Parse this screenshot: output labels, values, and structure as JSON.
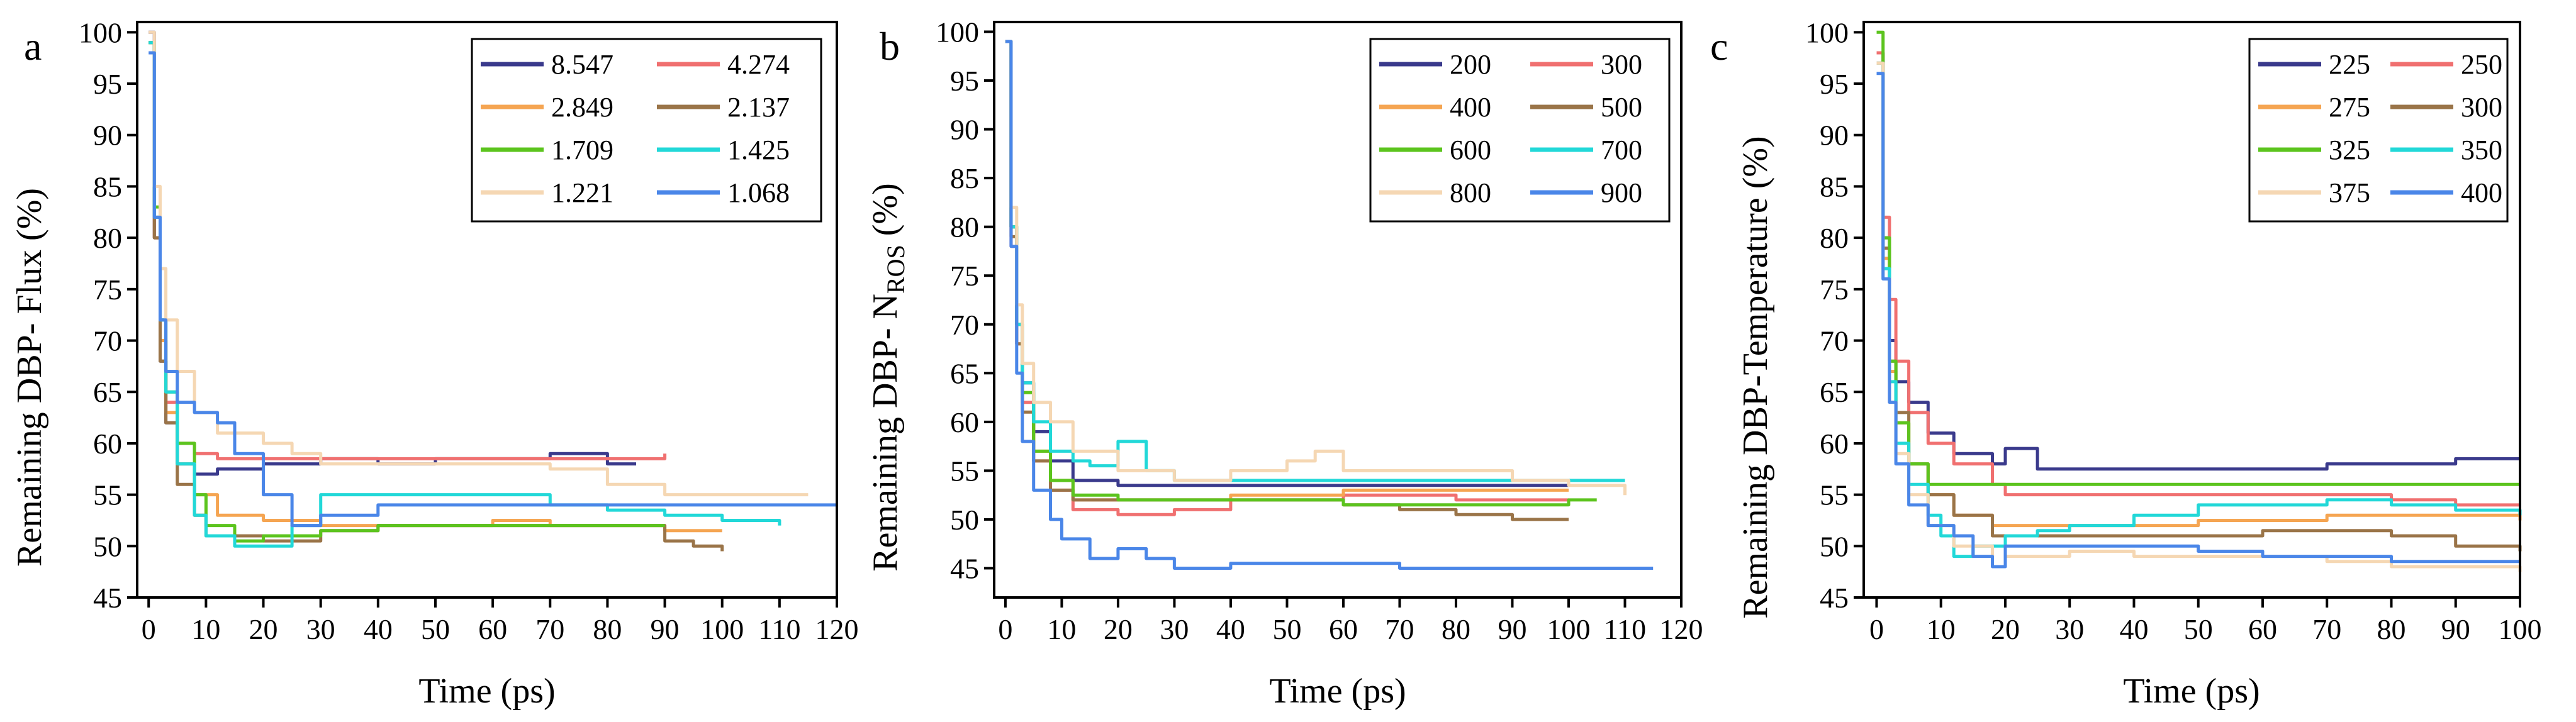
{
  "colors": [
    "#3a3a8c",
    "#f07070",
    "#f5a552",
    "#9a7448",
    "#5cc41e",
    "#22d8d8",
    "#f5d7b3",
    "#4a86e8"
  ],
  "chart_data": [
    {
      "type": "line",
      "panel_label": "a",
      "xlabel": "Time (ps)",
      "ylabel": "Remaining DBP- Flux (%)",
      "xlim": [
        -2,
        120
      ],
      "ylim": [
        45,
        101
      ],
      "xticks": [
        0,
        10,
        20,
        30,
        40,
        50,
        60,
        70,
        80,
        90,
        100,
        110,
        120
      ],
      "xtick_labels": [
        "0",
        "10",
        "20",
        "30",
        "40",
        "50",
        "60",
        "70",
        "80",
        "90",
        "100",
        "110",
        "120"
      ],
      "yticks": [
        45,
        50,
        55,
        60,
        65,
        70,
        75,
        80,
        85,
        90,
        95,
        100
      ],
      "ytick_labels": [
        "45",
        "50",
        "55",
        "60",
        "65",
        "70",
        "75",
        "80",
        "85",
        "90",
        "95",
        "100"
      ],
      "legend_position": "top-right",
      "series": [
        {
          "name": "8.547",
          "x": [
            0,
            1,
            2,
            3,
            5,
            8,
            12,
            20,
            30,
            40,
            50,
            60,
            70,
            80,
            85
          ],
          "y": [
            100,
            80,
            68,
            62,
            58,
            57,
            57.5,
            58,
            58.5,
            58,
            58.5,
            58.5,
            59,
            58,
            58
          ]
        },
        {
          "name": "4.274",
          "x": [
            0,
            1,
            2,
            3,
            5,
            8,
            12,
            20,
            30,
            40,
            50,
            60,
            70,
            80,
            90
          ],
          "y": [
            99,
            80,
            70,
            64,
            60,
            59,
            58.5,
            58.5,
            58.5,
            58.5,
            58.5,
            58.5,
            58.5,
            58.5,
            59
          ]
        },
        {
          "name": "2.849",
          "x": [
            0,
            1,
            2,
            3,
            5,
            8,
            12,
            20,
            30,
            40,
            50,
            60,
            70,
            80,
            90,
            100
          ],
          "y": [
            99,
            82,
            70,
            63,
            58,
            55,
            53,
            52.5,
            52,
            52,
            52,
            52.5,
            52,
            52,
            51.5,
            51.5
          ]
        },
        {
          "name": "2.137",
          "x": [
            0,
            1,
            2,
            3,
            5,
            8,
            10,
            15,
            20,
            30,
            40,
            50,
            60,
            70,
            80,
            90,
            95,
            100
          ],
          "y": [
            99,
            80,
            68,
            62,
            56,
            53,
            51,
            51,
            50.5,
            51.5,
            52,
            52,
            52,
            52,
            52,
            50.5,
            50,
            49.5
          ]
        },
        {
          "name": "1.709",
          "x": [
            0,
            1,
            2,
            3,
            5,
            8,
            10,
            15,
            20,
            30,
            40,
            50,
            60,
            70,
            80,
            90
          ],
          "y": [
            99,
            83,
            72,
            65,
            60,
            55,
            52,
            50.5,
            51,
            51.5,
            52,
            52,
            52,
            52,
            52,
            52
          ]
        },
        {
          "name": "1.425",
          "x": [
            0,
            1,
            2,
            3,
            5,
            8,
            10,
            15,
            20,
            25,
            30,
            40,
            50,
            60,
            70,
            80,
            90,
            100,
            110
          ],
          "y": [
            99,
            82,
            72,
            65,
            58,
            53,
            51,
            50,
            50,
            52,
            55,
            55,
            55,
            55,
            54,
            53.5,
            53,
            52.5,
            52
          ]
        },
        {
          "name": "1.221",
          "x": [
            0,
            1,
            2,
            3,
            5,
            8,
            12,
            20,
            25,
            30,
            40,
            50,
            60,
            70,
            80,
            90,
            100,
            110,
            115
          ],
          "y": [
            100,
            85,
            77,
            72,
            67,
            63,
            61,
            60,
            59,
            58,
            58,
            58,
            58,
            57.5,
            56,
            55,
            55,
            55,
            55
          ]
        },
        {
          "name": "1.068",
          "x": [
            0,
            1,
            2,
            3,
            5,
            8,
            12,
            15,
            20,
            25,
            30,
            40,
            50,
            60,
            70,
            80,
            90,
            100,
            110,
            120
          ],
          "y": [
            98,
            82,
            72,
            67,
            64,
            63,
            62,
            59,
            55,
            52,
            53,
            54,
            54,
            54,
            54,
            54,
            54,
            54,
            54,
            54
          ]
        }
      ]
    },
    {
      "type": "line",
      "panel_label": "b",
      "xlabel": "Time (ps)",
      "ylabel": "Remaining DBP- N",
      "ylabel_sub": "ROS",
      "ylabel_suffix": " (%)",
      "xlim": [
        -2,
        120
      ],
      "ylim": [
        42,
        101
      ],
      "xticks": [
        0,
        10,
        20,
        30,
        40,
        50,
        60,
        70,
        80,
        90,
        100,
        110,
        120
      ],
      "xtick_labels": [
        "0",
        "10",
        "20",
        "30",
        "40",
        "50",
        "60",
        "70",
        "80",
        "90",
        "100",
        "110",
        "120"
      ],
      "yticks": [
        45,
        50,
        55,
        60,
        65,
        70,
        75,
        80,
        85,
        90,
        95,
        100
      ],
      "ytick_labels": [
        "45",
        "50",
        "55",
        "60",
        "65",
        "70",
        "75",
        "80",
        "85",
        "90",
        "95",
        "100"
      ],
      "legend_position": "top-right",
      "series": [
        {
          "name": "200",
          "x": [
            0,
            1,
            2,
            3,
            5,
            8,
            12,
            20,
            30,
            40,
            50,
            60,
            70,
            80,
            90,
            100
          ],
          "y": [
            99,
            80,
            70,
            64,
            59,
            56,
            54,
            53.5,
            53.5,
            53.5,
            53.5,
            53.5,
            53.5,
            53.5,
            53.5,
            53.5
          ]
        },
        {
          "name": "300",
          "x": [
            0,
            1,
            2,
            3,
            5,
            8,
            12,
            20,
            30,
            40,
            50,
            60,
            70,
            80,
            90,
            100
          ],
          "y": [
            99,
            78,
            68,
            62,
            56,
            53,
            51,
            50.5,
            51,
            52,
            52,
            52.5,
            52.5,
            52,
            52,
            52
          ]
        },
        {
          "name": "400",
          "x": [
            0,
            1,
            2,
            3,
            5,
            8,
            12,
            20,
            30,
            40,
            50,
            60,
            70,
            80,
            90,
            100
          ],
          "y": [
            99,
            80,
            70,
            63,
            57,
            54,
            52,
            52,
            52,
            52.5,
            52.5,
            53,
            53,
            53,
            53,
            53
          ]
        },
        {
          "name": "500",
          "x": [
            0,
            1,
            2,
            3,
            5,
            8,
            12,
            20,
            30,
            40,
            50,
            60,
            70,
            80,
            90,
            100
          ],
          "y": [
            99,
            79,
            68,
            61,
            56,
            53,
            52,
            52,
            52,
            52,
            52,
            51.5,
            51,
            50.5,
            50,
            50
          ]
        },
        {
          "name": "600",
          "x": [
            0,
            1,
            2,
            3,
            5,
            8,
            12,
            20,
            30,
            40,
            50,
            60,
            70,
            80,
            90,
            100,
            105
          ],
          "y": [
            99,
            80,
            70,
            63,
            57,
            54,
            52.5,
            52,
            52,
            52,
            52,
            51.5,
            51.5,
            51.5,
            51.5,
            52,
            52
          ]
        },
        {
          "name": "700",
          "x": [
            0,
            1,
            2,
            3,
            5,
            8,
            12,
            15,
            20,
            25,
            30,
            40,
            50,
            60,
            70,
            80,
            90,
            100,
            110
          ],
          "y": [
            99,
            80,
            70,
            64,
            60,
            57,
            56,
            55.5,
            58,
            55,
            54,
            54,
            54,
            54,
            54,
            54,
            54,
            54,
            54
          ]
        },
        {
          "name": "800",
          "x": [
            0,
            1,
            2,
            3,
            5,
            8,
            12,
            20,
            30,
            40,
            50,
            55,
            60,
            70,
            80,
            90,
            100,
            110
          ],
          "y": [
            99,
            82,
            72,
            66,
            62,
            60,
            57,
            55,
            54,
            55,
            56,
            57,
            55,
            55,
            55,
            54,
            53.5,
            52.5
          ]
        },
        {
          "name": "900",
          "x": [
            0,
            1,
            2,
            3,
            5,
            8,
            10,
            15,
            20,
            25,
            30,
            40,
            50,
            60,
            70,
            80,
            90,
            100,
            110,
            115
          ],
          "y": [
            99,
            78,
            65,
            58,
            53,
            50,
            48,
            46,
            47,
            46,
            45,
            45.5,
            45.5,
            45.5,
            45,
            45,
            45,
            45,
            45,
            45
          ]
        }
      ]
    },
    {
      "type": "line",
      "panel_label": "c",
      "xlabel": "Time (ps)",
      "ylabel": "Remaining DBP-Temperature (%)",
      "xlim": [
        -2,
        100
      ],
      "ylim": [
        45,
        101
      ],
      "xticks": [
        0,
        10,
        20,
        30,
        40,
        50,
        60,
        70,
        80,
        90,
        100
      ],
      "xtick_labels": [
        "0",
        "10",
        "20",
        "30",
        "40",
        "50",
        "60",
        "70",
        "80",
        "90",
        "100"
      ],
      "yticks": [
        45,
        50,
        55,
        60,
        65,
        70,
        75,
        80,
        85,
        90,
        95,
        100
      ],
      "ytick_labels": [
        "45",
        "50",
        "55",
        "60",
        "65",
        "70",
        "75",
        "80",
        "85",
        "90",
        "95",
        "100"
      ],
      "legend_position": "top-right",
      "series": [
        {
          "name": "225",
          "x": [
            0,
            1,
            2,
            3,
            5,
            8,
            12,
            18,
            20,
            25,
            30,
            40,
            50,
            60,
            70,
            80,
            90,
            100
          ],
          "y": [
            98,
            80,
            70,
            66,
            64,
            61,
            59,
            58,
            59.5,
            57.5,
            57.5,
            57.5,
            57.5,
            57.5,
            58,
            58,
            58.5,
            58.5
          ]
        },
        {
          "name": "250",
          "x": [
            0,
            1,
            2,
            3,
            5,
            8,
            12,
            18,
            20,
            30,
            40,
            50,
            60,
            70,
            80,
            90,
            100
          ],
          "y": [
            98,
            82,
            74,
            68,
            63,
            60,
            58,
            56,
            55,
            55,
            55,
            55,
            55,
            55,
            54.5,
            54,
            54
          ]
        },
        {
          "name": "275",
          "x": [
            0,
            1,
            2,
            3,
            5,
            8,
            12,
            18,
            20,
            30,
            40,
            50,
            60,
            70,
            80,
            90,
            100
          ],
          "y": [
            97,
            78,
            67,
            62,
            58,
            55,
            53,
            52,
            52,
            52,
            52,
            52.5,
            52.5,
            53,
            53,
            53,
            52.5
          ]
        },
        {
          "name": "300",
          "x": [
            0,
            1,
            2,
            3,
            5,
            8,
            12,
            18,
            20,
            30,
            40,
            50,
            60,
            70,
            80,
            90,
            100
          ],
          "y": [
            97,
            79,
            68,
            63,
            58,
            55,
            53,
            51,
            51,
            51,
            51,
            51,
            51.5,
            51.5,
            51,
            50,
            49.5
          ]
        },
        {
          "name": "325",
          "x": [
            0,
            1,
            2,
            3,
            5,
            8,
            12,
            18,
            20,
            30,
            40,
            50,
            60,
            70,
            80,
            90,
            100
          ],
          "y": [
            100,
            80,
            68,
            62,
            58,
            56,
            56,
            56,
            56,
            56,
            56,
            56,
            56,
            56,
            56,
            56,
            56
          ]
        },
        {
          "name": "350",
          "x": [
            0,
            1,
            2,
            3,
            5,
            8,
            10,
            12,
            15,
            20,
            25,
            30,
            40,
            50,
            60,
            70,
            80,
            90,
            100
          ],
          "y": [
            97,
            77,
            66,
            60,
            56,
            53,
            51,
            49,
            50,
            51,
            51.5,
            52,
            53,
            54,
            54,
            54.5,
            54,
            53.5,
            53
          ]
        },
        {
          "name": "375",
          "x": [
            0,
            1,
            2,
            3,
            5,
            8,
            12,
            18,
            20,
            30,
            40,
            50,
            60,
            70,
            80,
            90,
            100
          ],
          "y": [
            97,
            76,
            64,
            59,
            55,
            52,
            50,
            48,
            49,
            49.5,
            49,
            49,
            49,
            48.5,
            48,
            48,
            47.5
          ]
        },
        {
          "name": "400",
          "x": [
            0,
            1,
            2,
            3,
            5,
            8,
            12,
            15,
            18,
            20,
            25,
            30,
            40,
            50,
            60,
            70,
            80,
            90,
            100
          ],
          "y": [
            96,
            76,
            64,
            58,
            54,
            52,
            51,
            49,
            48,
            50,
            50,
            50,
            50,
            49.5,
            49,
            49,
            48.5,
            48.5,
            48.5
          ]
        }
      ]
    }
  ]
}
